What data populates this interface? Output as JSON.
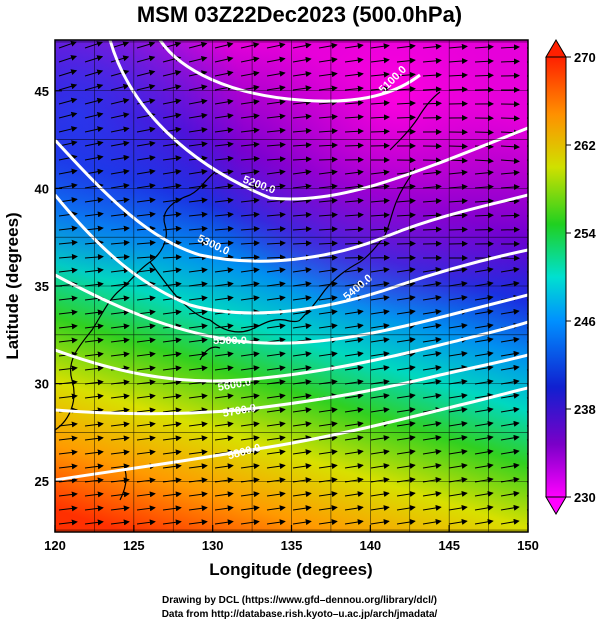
{
  "title": "MSM 03Z22Dec2023 (500.0hPa)",
  "axes": {
    "xlabel": "Longitude (degrees)",
    "ylabel": "Latitude  (degrees)",
    "xlim": [
      120,
      150
    ],
    "ylim": [
      22.4,
      47.6
    ],
    "xticks": [
      "120",
      "125",
      "130",
      "135",
      "140",
      "145",
      "150"
    ],
    "yticks": [
      "25",
      "30",
      "35",
      "40",
      "45"
    ]
  },
  "colorbar": {
    "min": 230,
    "max": 270,
    "ticks": [
      "270",
      "262",
      "254",
      "246",
      "238",
      "230"
    ]
  },
  "contour_labels": [
    "5100.0",
    "5200.0",
    "5300.0",
    "5400.0",
    "5500.0",
    "5600.0",
    "5700.0",
    "5800.0"
  ],
  "credits": {
    "line1": "Drawing by DCL (https://www.gfd–dennou.org/library/dcl/)",
    "line2": "Data from http://database.rish.kyoto–u.ac.jp/arch/jmadata/"
  },
  "colors": {
    "cold": "#b000c8",
    "cool": "#1030e0",
    "mid": "#00d0e0",
    "warm": "#40e040",
    "hot": "#ff2000"
  }
}
